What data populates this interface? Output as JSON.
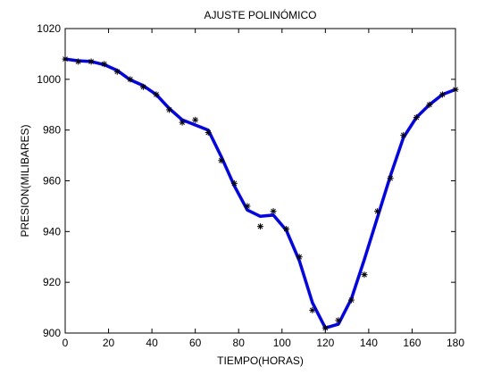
{
  "chart_data": {
    "type": "line",
    "title": "AJUSTE POLINÓMICO",
    "xlabel": "TIEMPO(HORAS)",
    "ylabel": "PRESION(MILIBARES)",
    "xlim": [
      0,
      180
    ],
    "ylim": [
      900,
      1020
    ],
    "xticks": [
      0,
      20,
      40,
      60,
      80,
      100,
      120,
      140,
      160,
      180
    ],
    "yticks": [
      900,
      920,
      940,
      960,
      980,
      1000,
      1020
    ],
    "grid": false,
    "legend": "none",
    "series": [
      {
        "style": "markers",
        "marker": "asterisk",
        "color": "#000000",
        "x": [
          0,
          6,
          12,
          18,
          24,
          30,
          36,
          42,
          48,
          54,
          60,
          66,
          72,
          78,
          84,
          90,
          96,
          102,
          108,
          114,
          120,
          126,
          132,
          138,
          144,
          150,
          156,
          162,
          168,
          174,
          180
        ],
        "y": [
          1008,
          1007,
          1007,
          1006,
          1003,
          1000,
          997,
          994,
          988,
          983,
          984,
          979,
          968,
          959,
          950,
          942,
          948,
          941,
          930,
          909,
          902,
          905,
          913,
          923,
          948,
          961,
          978,
          985,
          990,
          994,
          996
        ]
      },
      {
        "style": "line",
        "color": "#0000ff",
        "x": [
          0,
          6,
          12,
          18,
          24,
          30,
          36,
          42,
          48,
          54,
          60,
          66,
          72,
          78,
          84,
          90,
          96,
          102,
          108,
          114,
          120,
          126,
          132,
          138,
          144,
          150,
          156,
          162,
          168,
          174,
          180
        ],
        "y": [
          1008,
          1007.3,
          1007,
          1005.8,
          1003.5,
          999.8,
          997.5,
          994,
          988.5,
          984,
          982,
          980,
          969.5,
          958,
          948.5,
          946,
          946.5,
          940.5,
          928.5,
          912,
          902,
          903.5,
          913.5,
          929,
          945.5,
          962,
          977,
          985,
          990,
          994,
          996
        ]
      }
    ]
  }
}
